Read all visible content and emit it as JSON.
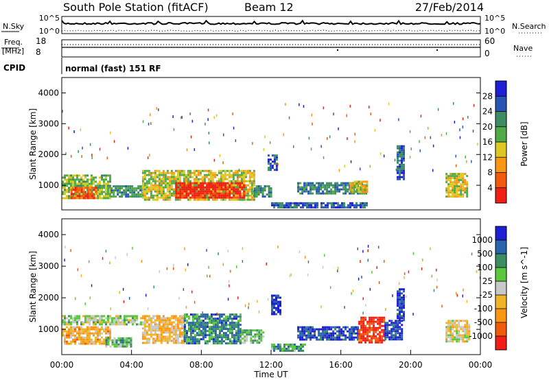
{
  "header": {
    "station": "South Pole Station (fitACF)",
    "beam": "Beam 12",
    "date": "27/Feb/2014"
  },
  "summary_panels": {
    "nsky_label": "N.Sky",
    "nsky_ticks": [
      "10^5",
      "10^0"
    ],
    "nsearch_label": "N.Search",
    "nsearch_ticks": [
      "10^5",
      "10^0"
    ],
    "freq_label_1": "Freq.",
    "freq_label_2": "[MHz]",
    "freq_ticks": [
      "18",
      "8"
    ],
    "nave_label": "Nave",
    "nave_ticks": [
      "60",
      "0"
    ],
    "cpid_label": "CPID",
    "cpid_text": "normal (fast) 151 RF"
  },
  "colors": {
    "power_scale": [
      "#1e1ed2",
      "#2855b4",
      "#3c8c64",
      "#50aa46",
      "#dcc81e",
      "#fa9614",
      "#f05a0a",
      "#f01e14"
    ],
    "velocity_scale": [
      "#1e1ed2",
      "#2864aa",
      "#3c8c64",
      "#5ac83c",
      "#c8c8c8",
      "#f0b428",
      "#fa9614",
      "#f05a0a",
      "#f01e14"
    ]
  },
  "chart_data": [
    {
      "type": "heatmap",
      "name": "power",
      "ylabel": "Slant Range [km]",
      "yticks": [
        "4000",
        "3000",
        "2000",
        "1000"
      ],
      "ylim": [
        200,
        4500
      ],
      "colorbar_label": "Power [dB]",
      "colorbar_ticks": [
        "28",
        "24",
        "20",
        "16",
        "12",
        "8",
        "4"
      ],
      "regions": [
        {
          "t0": 0.0,
          "t1": 2.8,
          "r0": 550,
          "r1": 1350,
          "level": 0.45
        },
        {
          "t0": 0.5,
          "t1": 2.0,
          "r0": 600,
          "r1": 950,
          "level": 0.8
        },
        {
          "t0": 2.8,
          "t1": 4.6,
          "r0": 600,
          "r1": 1000,
          "level": 0.35
        },
        {
          "t0": 4.6,
          "t1": 11.0,
          "r0": 550,
          "r1": 1500,
          "level": 0.55
        },
        {
          "t0": 6.5,
          "t1": 10.5,
          "r0": 600,
          "r1": 1100,
          "level": 0.95
        },
        {
          "t0": 11.0,
          "t1": 12.0,
          "r0": 600,
          "r1": 1000,
          "level": 0.3
        },
        {
          "t0": 12.0,
          "t1": 17.5,
          "r0": 300,
          "r1": 450,
          "level": 0.2
        },
        {
          "t0": 13.5,
          "t1": 17.5,
          "r0": 700,
          "r1": 1100,
          "level": 0.3
        },
        {
          "t0": 16.5,
          "t1": 17.5,
          "r0": 800,
          "r1": 1150,
          "level": 0.6
        },
        {
          "t0": 19.2,
          "t1": 19.6,
          "r0": 1200,
          "r1": 2300,
          "level": 0.2
        },
        {
          "t0": 22.0,
          "t1": 23.2,
          "r0": 600,
          "r1": 1400,
          "level": 0.55
        },
        {
          "t0": 11.8,
          "t1": 12.3,
          "r0": 1500,
          "r1": 2000,
          "level": 0.2
        }
      ]
    },
    {
      "type": "heatmap",
      "name": "velocity",
      "ylabel": "Slant Range [km]",
      "yticks": [
        "4000",
        "3000",
        "2000",
        "1000"
      ],
      "ylim": [
        200,
        4500
      ],
      "colorbar_label": "Velocity [m s^-1]",
      "colorbar_ticks": [
        "1000",
        "500",
        "100",
        "25",
        "-25",
        "-100",
        "-500",
        "-1000"
      ],
      "xlabel": "Time UT",
      "xticks": [
        "00:00",
        "04:00",
        "08:00",
        "12:00",
        "16:00",
        "20:00",
        "00:00"
      ],
      "regions": [
        {
          "t0": 0.0,
          "t1": 2.8,
          "r0": 550,
          "r1": 1100,
          "level": 0.65
        },
        {
          "t0": 0.0,
          "t1": 4.5,
          "r0": 1150,
          "r1": 1450,
          "level": 0.45
        },
        {
          "t0": 2.5,
          "t1": 4.0,
          "r0": 450,
          "r1": 750,
          "level": 0.35
        },
        {
          "t0": 4.6,
          "t1": 7.0,
          "r0": 550,
          "r1": 1450,
          "level": 0.62
        },
        {
          "t0": 7.0,
          "t1": 10.2,
          "r0": 550,
          "r1": 1500,
          "level": 0.25
        },
        {
          "t0": 10.2,
          "t1": 11.6,
          "r0": 600,
          "r1": 1000,
          "level": 0.4
        },
        {
          "t0": 12.0,
          "t1": 14.0,
          "r0": 350,
          "r1": 550,
          "level": 0.3
        },
        {
          "t0": 12.0,
          "t1": 12.5,
          "r0": 1500,
          "r1": 2100,
          "level": 0.1
        },
        {
          "t0": 13.5,
          "t1": 17.0,
          "r0": 700,
          "r1": 1100,
          "level": 0.1
        },
        {
          "t0": 17.0,
          "t1": 18.5,
          "r0": 600,
          "r1": 1400,
          "level": 0.92
        },
        {
          "t0": 18.5,
          "t1": 19.5,
          "r0": 700,
          "r1": 1300,
          "level": 0.12
        },
        {
          "t0": 19.2,
          "t1": 19.6,
          "r0": 1300,
          "r1": 2300,
          "level": 0.1
        },
        {
          "t0": 22.0,
          "t1": 23.3,
          "r0": 600,
          "r1": 1300,
          "level": 0.55
        }
      ]
    }
  ]
}
